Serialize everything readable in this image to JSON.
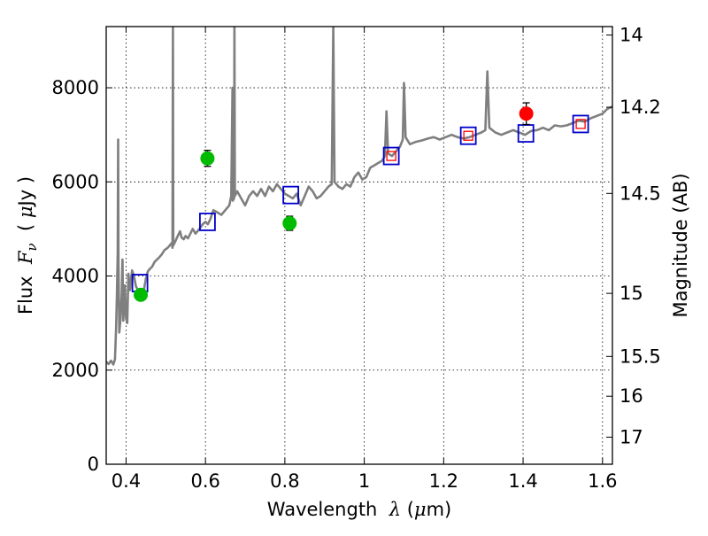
{
  "chart_data": {
    "type": "scatter",
    "xlabel": {
      "prefix": "Wavelength  ",
      "symbol": "λ",
      "suffix": " (",
      "mu": "μ",
      "unit": "m)"
    },
    "ylabel": {
      "prefix": "Flux  ",
      "symbol": "F",
      "sub": "ν",
      "mid": "  ( ",
      "mu": "μ",
      "unit": "Jy )"
    },
    "y2label": "Magnitude (AB)",
    "xlim": [
      0.35,
      1.625
    ],
    "ylim": [
      0,
      9300
    ],
    "x_ticks": [
      0.4,
      0.6,
      0.8,
      1.0,
      1.2,
      1.4,
      1.6
    ],
    "x_tick_labels": [
      "0.4",
      "0.6",
      "0.8",
      "1",
      "1.2",
      "1.4",
      "1.6"
    ],
    "y_ticks": [
      0,
      2000,
      4000,
      6000,
      8000
    ],
    "y_tick_labels": [
      "0",
      "2000",
      "4000",
      "6000",
      "8000"
    ],
    "y2_ticks": [
      {
        "mag": 14.0,
        "label": "14"
      },
      {
        "mag": 14.2,
        "label": "14.2"
      },
      {
        "mag": 14.5,
        "label": "14.5"
      },
      {
        "mag": 15.0,
        "label": "15"
      },
      {
        "mag": 15.5,
        "label": "15.5"
      },
      {
        "mag": 16.0,
        "label": "16"
      },
      {
        "mag": 17.0,
        "label": "17"
      }
    ],
    "grid": true,
    "series": [
      {
        "kind": "line",
        "color": "#7f7f7f",
        "points": [
          [
            0.35,
            2180
          ],
          [
            0.356,
            2130
          ],
          [
            0.362,
            2200
          ],
          [
            0.368,
            2120
          ],
          [
            0.372,
            2230
          ],
          [
            0.375,
            2900
          ],
          [
            0.377,
            3600
          ],
          [
            0.379,
            4500
          ],
          [
            0.38,
            6900
          ],
          [
            0.381,
            4300
          ],
          [
            0.383,
            2800
          ],
          [
            0.386,
            3100
          ],
          [
            0.389,
            3600
          ],
          [
            0.391,
            4350
          ],
          [
            0.393,
            3050
          ],
          [
            0.397,
            3800
          ],
          [
            0.4,
            3100
          ],
          [
            0.403,
            3000
          ],
          [
            0.406,
            4050
          ],
          [
            0.41,
            3700
          ],
          [
            0.415,
            4120
          ],
          [
            0.42,
            4000
          ],
          [
            0.425,
            3780
          ],
          [
            0.43,
            3700
          ],
          [
            0.435,
            3650
          ],
          [
            0.44,
            3620
          ],
          [
            0.445,
            3700
          ],
          [
            0.45,
            3950
          ],
          [
            0.455,
            4100
          ],
          [
            0.46,
            4150
          ],
          [
            0.466,
            4200
          ],
          [
            0.472,
            4300
          ],
          [
            0.478,
            4350
          ],
          [
            0.484,
            4400
          ],
          [
            0.49,
            4460
          ],
          [
            0.497,
            4550
          ],
          [
            0.505,
            4600
          ],
          [
            0.51,
            4650
          ],
          [
            0.515,
            4700
          ],
          [
            0.517,
            4600
          ],
          [
            0.518,
            9300
          ],
          [
            0.519,
            4650
          ],
          [
            0.522,
            4700
          ],
          [
            0.53,
            4850
          ],
          [
            0.536,
            4950
          ],
          [
            0.54,
            4820
          ],
          [
            0.545,
            4780
          ],
          [
            0.55,
            4850
          ],
          [
            0.556,
            4800
          ],
          [
            0.562,
            4900
          ],
          [
            0.568,
            5000
          ],
          [
            0.575,
            4900
          ],
          [
            0.585,
            5000
          ],
          [
            0.593,
            5100
          ],
          [
            0.6,
            5150
          ],
          [
            0.606,
            5100
          ],
          [
            0.612,
            5200
          ],
          [
            0.62,
            5400
          ],
          [
            0.63,
            5350
          ],
          [
            0.64,
            5300
          ],
          [
            0.65,
            5400
          ],
          [
            0.66,
            5500
          ],
          [
            0.665,
            5700
          ],
          [
            0.668,
            8000
          ],
          [
            0.669,
            5600
          ],
          [
            0.672,
            5650
          ],
          [
            0.673,
            9300
          ],
          [
            0.674,
            5700
          ],
          [
            0.68,
            5800
          ],
          [
            0.69,
            5650
          ],
          [
            0.7,
            5500
          ],
          [
            0.71,
            5700
          ],
          [
            0.72,
            5800
          ],
          [
            0.73,
            5700
          ],
          [
            0.74,
            5850
          ],
          [
            0.75,
            5700
          ],
          [
            0.76,
            5900
          ],
          [
            0.77,
            5800
          ],
          [
            0.78,
            5950
          ],
          [
            0.79,
            5850
          ],
          [
            0.8,
            5750
          ],
          [
            0.81,
            5700
          ],
          [
            0.82,
            5650
          ],
          [
            0.83,
            5750
          ],
          [
            0.84,
            5500
          ],
          [
            0.85,
            5700
          ],
          [
            0.86,
            5900
          ],
          [
            0.87,
            5800
          ],
          [
            0.88,
            5650
          ],
          [
            0.89,
            5700
          ],
          [
            0.9,
            5800
          ],
          [
            0.91,
            5900
          ],
          [
            0.918,
            5950
          ],
          [
            0.922,
            9300
          ],
          [
            0.925,
            6000
          ],
          [
            0.935,
            5900
          ],
          [
            0.945,
            5850
          ],
          [
            0.955,
            5950
          ],
          [
            0.965,
            5900
          ],
          [
            0.975,
            6100
          ],
          [
            0.985,
            6200
          ],
          [
            0.995,
            6050
          ],
          [
            1.005,
            6100
          ],
          [
            1.015,
            6300
          ],
          [
            1.025,
            6350
          ],
          [
            1.035,
            6400
          ],
          [
            1.045,
            6450
          ],
          [
            1.052,
            6550
          ],
          [
            1.056,
            7500
          ],
          [
            1.06,
            6600
          ],
          [
            1.07,
            6550
          ],
          [
            1.08,
            6650
          ],
          [
            1.09,
            6750
          ],
          [
            1.097,
            6900
          ],
          [
            1.1,
            8100
          ],
          [
            1.104,
            6950
          ],
          [
            1.115,
            6800
          ],
          [
            1.13,
            6850
          ],
          [
            1.145,
            6880
          ],
          [
            1.16,
            6920
          ],
          [
            1.175,
            6950
          ],
          [
            1.19,
            6900
          ],
          [
            1.205,
            6950
          ],
          [
            1.22,
            7000
          ],
          [
            1.235,
            6950
          ],
          [
            1.25,
            6920
          ],
          [
            1.265,
            6950
          ],
          [
            1.28,
            7000
          ],
          [
            1.295,
            7050
          ],
          [
            1.305,
            7100
          ],
          [
            1.31,
            8350
          ],
          [
            1.315,
            7150
          ],
          [
            1.33,
            7050
          ],
          [
            1.345,
            7000
          ],
          [
            1.36,
            7050
          ],
          [
            1.375,
            7100
          ],
          [
            1.39,
            7050
          ],
          [
            1.405,
            7000
          ],
          [
            1.42,
            7080
          ],
          [
            1.435,
            7100
          ],
          [
            1.45,
            7150
          ],
          [
            1.465,
            7100
          ],
          [
            1.48,
            7200
          ],
          [
            1.495,
            7180
          ],
          [
            1.51,
            7200
          ],
          [
            1.525,
            7250
          ],
          [
            1.54,
            7300
          ],
          [
            1.555,
            7280
          ],
          [
            1.57,
            7350
          ],
          [
            1.585,
            7400
          ],
          [
            1.6,
            7450
          ],
          [
            1.612,
            7550
          ],
          [
            1.625,
            7600
          ]
        ]
      },
      {
        "kind": "open-square",
        "color": "#0000cc",
        "points": [
          [
            0.435,
            3850
          ],
          [
            0.605,
            5150
          ],
          [
            0.815,
            5720
          ],
          [
            1.068,
            6550
          ],
          [
            1.262,
            6980
          ],
          [
            1.407,
            7030
          ],
          [
            1.545,
            7230
          ]
        ]
      },
      {
        "kind": "open-square-small",
        "color": "#ff0000",
        "points": [
          [
            1.068,
            6550
          ],
          [
            1.262,
            6980
          ],
          [
            1.545,
            7230
          ]
        ]
      },
      {
        "kind": "filled-circle",
        "color": "#00bb00",
        "points": [
          [
            0.437,
            3600,
            100
          ],
          [
            0.605,
            6500,
            170
          ],
          [
            0.812,
            5120,
            150
          ]
        ]
      },
      {
        "kind": "filled-circle",
        "color": "#ff0000",
        "points": [
          [
            1.408,
            7450,
            230
          ]
        ]
      }
    ]
  }
}
